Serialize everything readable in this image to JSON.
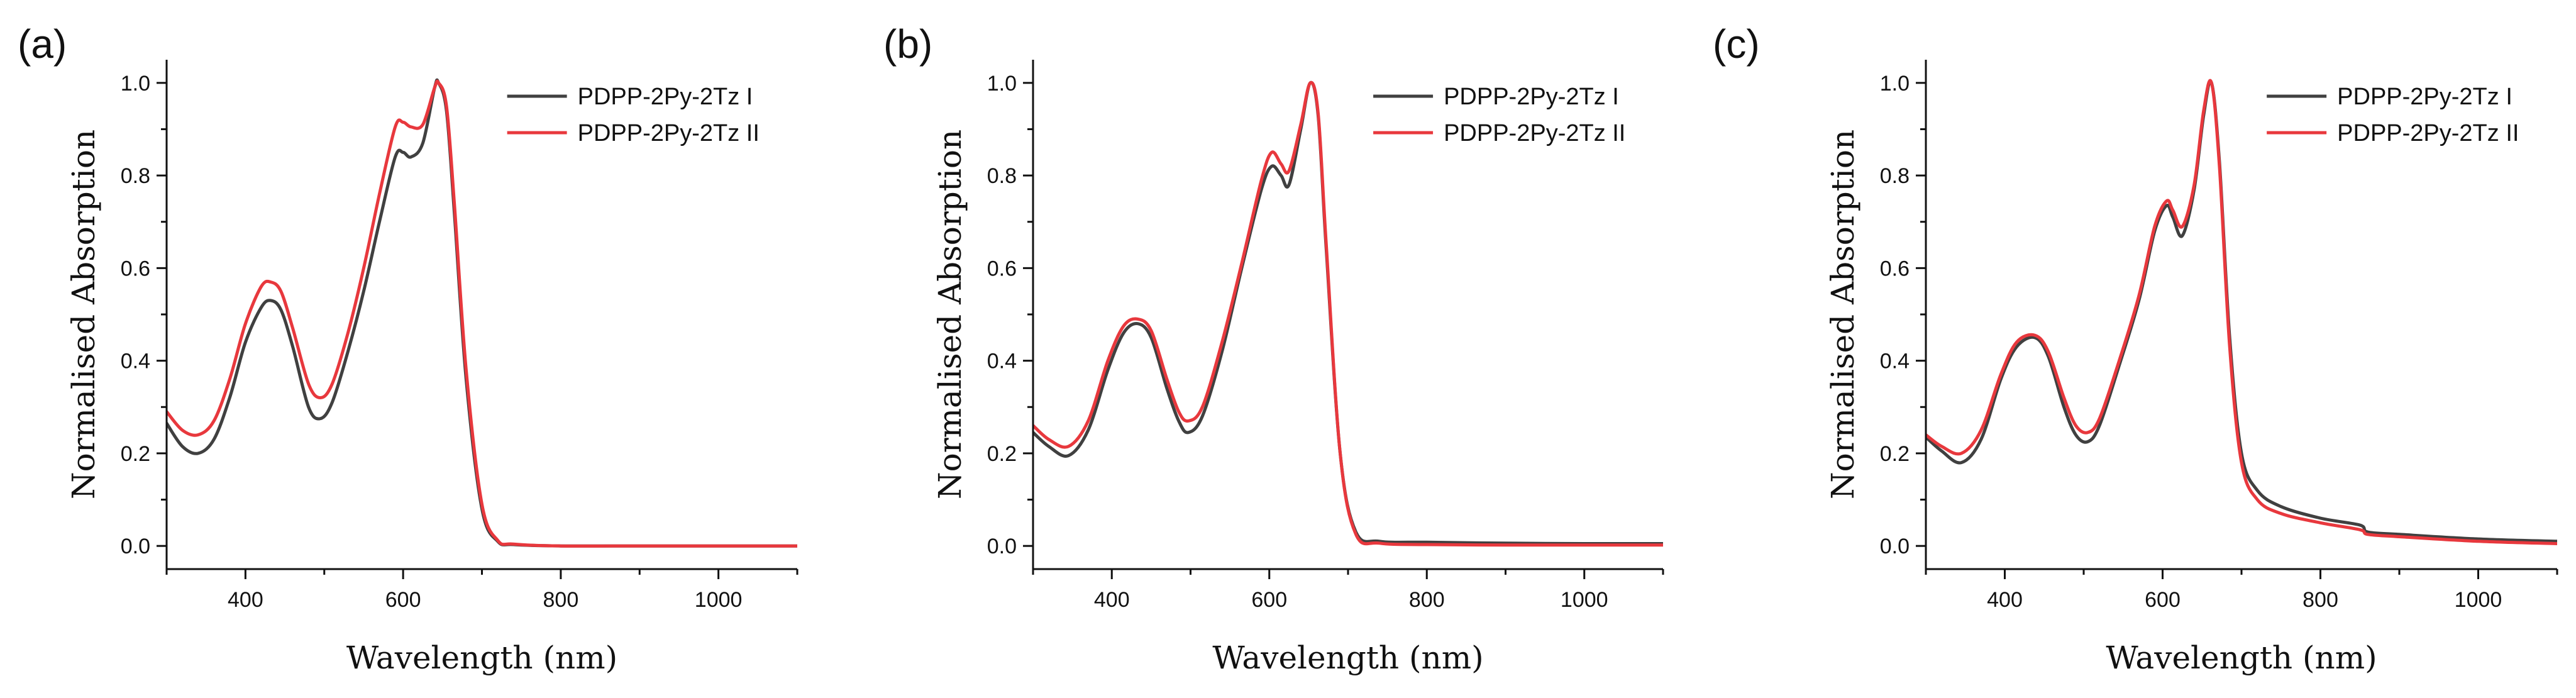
{
  "chart_data": [
    {
      "panel_label": "(a)",
      "type": "line",
      "xlabel": "Wavelength (nm)",
      "ylabel": "Normalised Absorption",
      "xlim": [
        300,
        1100
      ],
      "ylim": [
        -0.05,
        1.05
      ],
      "xticks": [
        400,
        600,
        800,
        1000
      ],
      "xtick_labels": [
        "400",
        "600",
        "800",
        "1000"
      ],
      "yticks": [
        0.0,
        0.2,
        0.4,
        0.6,
        0.8,
        1.0
      ],
      "ytick_labels": [
        "0.0",
        "0.2",
        "0.4",
        "0.6",
        "0.8",
        "1.0"
      ],
      "legend_position": "top-right",
      "series": [
        {
          "name": "PDPP-2Py-2Tz I",
          "color": "#404040",
          "x": [
            300,
            320,
            340,
            360,
            380,
            400,
            420,
            432,
            445,
            460,
            480,
            495,
            510,
            530,
            550,
            570,
            590,
            600,
            610,
            625,
            640,
            645,
            655,
            665,
            680,
            700,
            720,
            740,
            800,
            900,
            1000,
            1100
          ],
          "y": [
            0.265,
            0.215,
            0.2,
            0.23,
            0.32,
            0.44,
            0.515,
            0.53,
            0.51,
            0.43,
            0.3,
            0.275,
            0.31,
            0.42,
            0.55,
            0.7,
            0.84,
            0.85,
            0.84,
            0.87,
            0.99,
            1.0,
            0.94,
            0.72,
            0.36,
            0.08,
            0.01,
            0.003,
            0.0,
            0.0,
            0.0,
            0.0
          ]
        },
        {
          "name": "PDPP-2Py-2Tz II",
          "color": "#e8383d",
          "x": [
            300,
            320,
            340,
            360,
            380,
            400,
            420,
            432,
            445,
            460,
            480,
            495,
            510,
            530,
            550,
            570,
            590,
            600,
            610,
            625,
            640,
            645,
            655,
            665,
            680,
            700,
            720,
            740,
            800,
            900,
            1000,
            1100
          ],
          "y": [
            0.29,
            0.25,
            0.24,
            0.27,
            0.36,
            0.48,
            0.56,
            0.57,
            0.55,
            0.47,
            0.35,
            0.32,
            0.35,
            0.46,
            0.6,
            0.76,
            0.905,
            0.915,
            0.905,
            0.91,
            0.99,
            1.0,
            0.95,
            0.74,
            0.38,
            0.09,
            0.012,
            0.004,
            0.0,
            0.0,
            0.0,
            0.0
          ]
        }
      ]
    },
    {
      "panel_label": "(b)",
      "type": "line",
      "xlabel": "Wavelength (nm)",
      "ylabel": "Normalised Absorption",
      "xlim": [
        300,
        1100
      ],
      "ylim": [
        -0.05,
        1.05
      ],
      "xticks": [
        400,
        600,
        800,
        1000
      ],
      "xtick_labels": [
        "400",
        "600",
        "800",
        "1000"
      ],
      "yticks": [
        0.0,
        0.2,
        0.4,
        0.6,
        0.8,
        1.0
      ],
      "ytick_labels": [
        "0.0",
        "0.2",
        "0.4",
        "0.6",
        "0.8",
        "1.0"
      ],
      "legend_position": "top-right",
      "series": [
        {
          "name": "PDPP-2Py-2Tz I",
          "color": "#404040",
          "x": [
            300,
            320,
            345,
            370,
            395,
            415,
            433,
            450,
            470,
            485,
            497,
            515,
            540,
            565,
            590,
            603,
            615,
            625,
            640,
            652,
            662,
            672,
            690,
            710,
            740,
            800,
            900,
            1000,
            1100
          ],
          "y": [
            0.245,
            0.215,
            0.195,
            0.25,
            0.38,
            0.46,
            0.48,
            0.45,
            0.34,
            0.27,
            0.245,
            0.28,
            0.42,
            0.6,
            0.77,
            0.82,
            0.8,
            0.78,
            0.9,
            1.0,
            0.93,
            0.65,
            0.2,
            0.03,
            0.01,
            0.008,
            0.006,
            0.005,
            0.005
          ]
        },
        {
          "name": "PDPP-2Py-2Tz II",
          "color": "#e8383d",
          "x": [
            300,
            320,
            345,
            370,
            395,
            415,
            433,
            450,
            470,
            485,
            497,
            515,
            540,
            565,
            590,
            603,
            615,
            625,
            640,
            652,
            662,
            672,
            690,
            710,
            740,
            800,
            900,
            1000,
            1100
          ],
          "y": [
            0.26,
            0.23,
            0.215,
            0.27,
            0.4,
            0.475,
            0.49,
            0.465,
            0.36,
            0.29,
            0.27,
            0.3,
            0.44,
            0.61,
            0.79,
            0.85,
            0.825,
            0.81,
            0.91,
            1.0,
            0.935,
            0.66,
            0.2,
            0.025,
            0.006,
            0.003,
            0.002,
            0.002,
            0.002
          ]
        }
      ]
    },
    {
      "panel_label": "(c)",
      "type": "line",
      "xlabel": "Wavelength (nm)",
      "ylabel": "Normalised Absorption",
      "xlim": [
        300,
        1100
      ],
      "ylim": [
        -0.05,
        1.05
      ],
      "xticks": [
        400,
        600,
        800,
        1000
      ],
      "xtick_labels": [
        "400",
        "600",
        "800",
        "1000"
      ],
      "yticks": [
        0.0,
        0.2,
        0.4,
        0.6,
        0.8,
        1.0
      ],
      "ytick_labels": [
        "0.0",
        "0.2",
        "0.4",
        "0.6",
        "0.8",
        "1.0"
      ],
      "legend_position": "top-right",
      "series": [
        {
          "name": "PDPP-2Py-2Tz I",
          "color": "#404040",
          "x": [
            300,
            320,
            345,
            370,
            395,
            415,
            438,
            455,
            475,
            490,
            505,
            520,
            545,
            570,
            590,
            605,
            613,
            625,
            640,
            652,
            662,
            672,
            685,
            700,
            720,
            750,
            800,
            850,
            860,
            900,
            1000,
            1100
          ],
          "y": [
            0.235,
            0.205,
            0.18,
            0.23,
            0.36,
            0.43,
            0.45,
            0.41,
            0.3,
            0.24,
            0.225,
            0.26,
            0.39,
            0.53,
            0.68,
            0.735,
            0.71,
            0.67,
            0.77,
            0.93,
            1.0,
            0.83,
            0.45,
            0.2,
            0.12,
            0.085,
            0.06,
            0.045,
            0.03,
            0.025,
            0.015,
            0.01
          ]
        },
        {
          "name": "PDPP-2Py-2Tz II",
          "color": "#e8383d",
          "x": [
            300,
            320,
            345,
            370,
            395,
            415,
            438,
            455,
            475,
            490,
            505,
            520,
            545,
            570,
            590,
            605,
            613,
            625,
            640,
            652,
            662,
            672,
            685,
            700,
            720,
            750,
            800,
            850,
            860,
            900,
            1000,
            1100
          ],
          "y": [
            0.24,
            0.215,
            0.2,
            0.25,
            0.37,
            0.44,
            0.455,
            0.42,
            0.32,
            0.26,
            0.245,
            0.275,
            0.4,
            0.54,
            0.69,
            0.745,
            0.725,
            0.69,
            0.78,
            0.94,
            1.0,
            0.82,
            0.43,
            0.18,
            0.1,
            0.07,
            0.05,
            0.035,
            0.025,
            0.02,
            0.01,
            0.005
          ]
        }
      ]
    }
  ]
}
